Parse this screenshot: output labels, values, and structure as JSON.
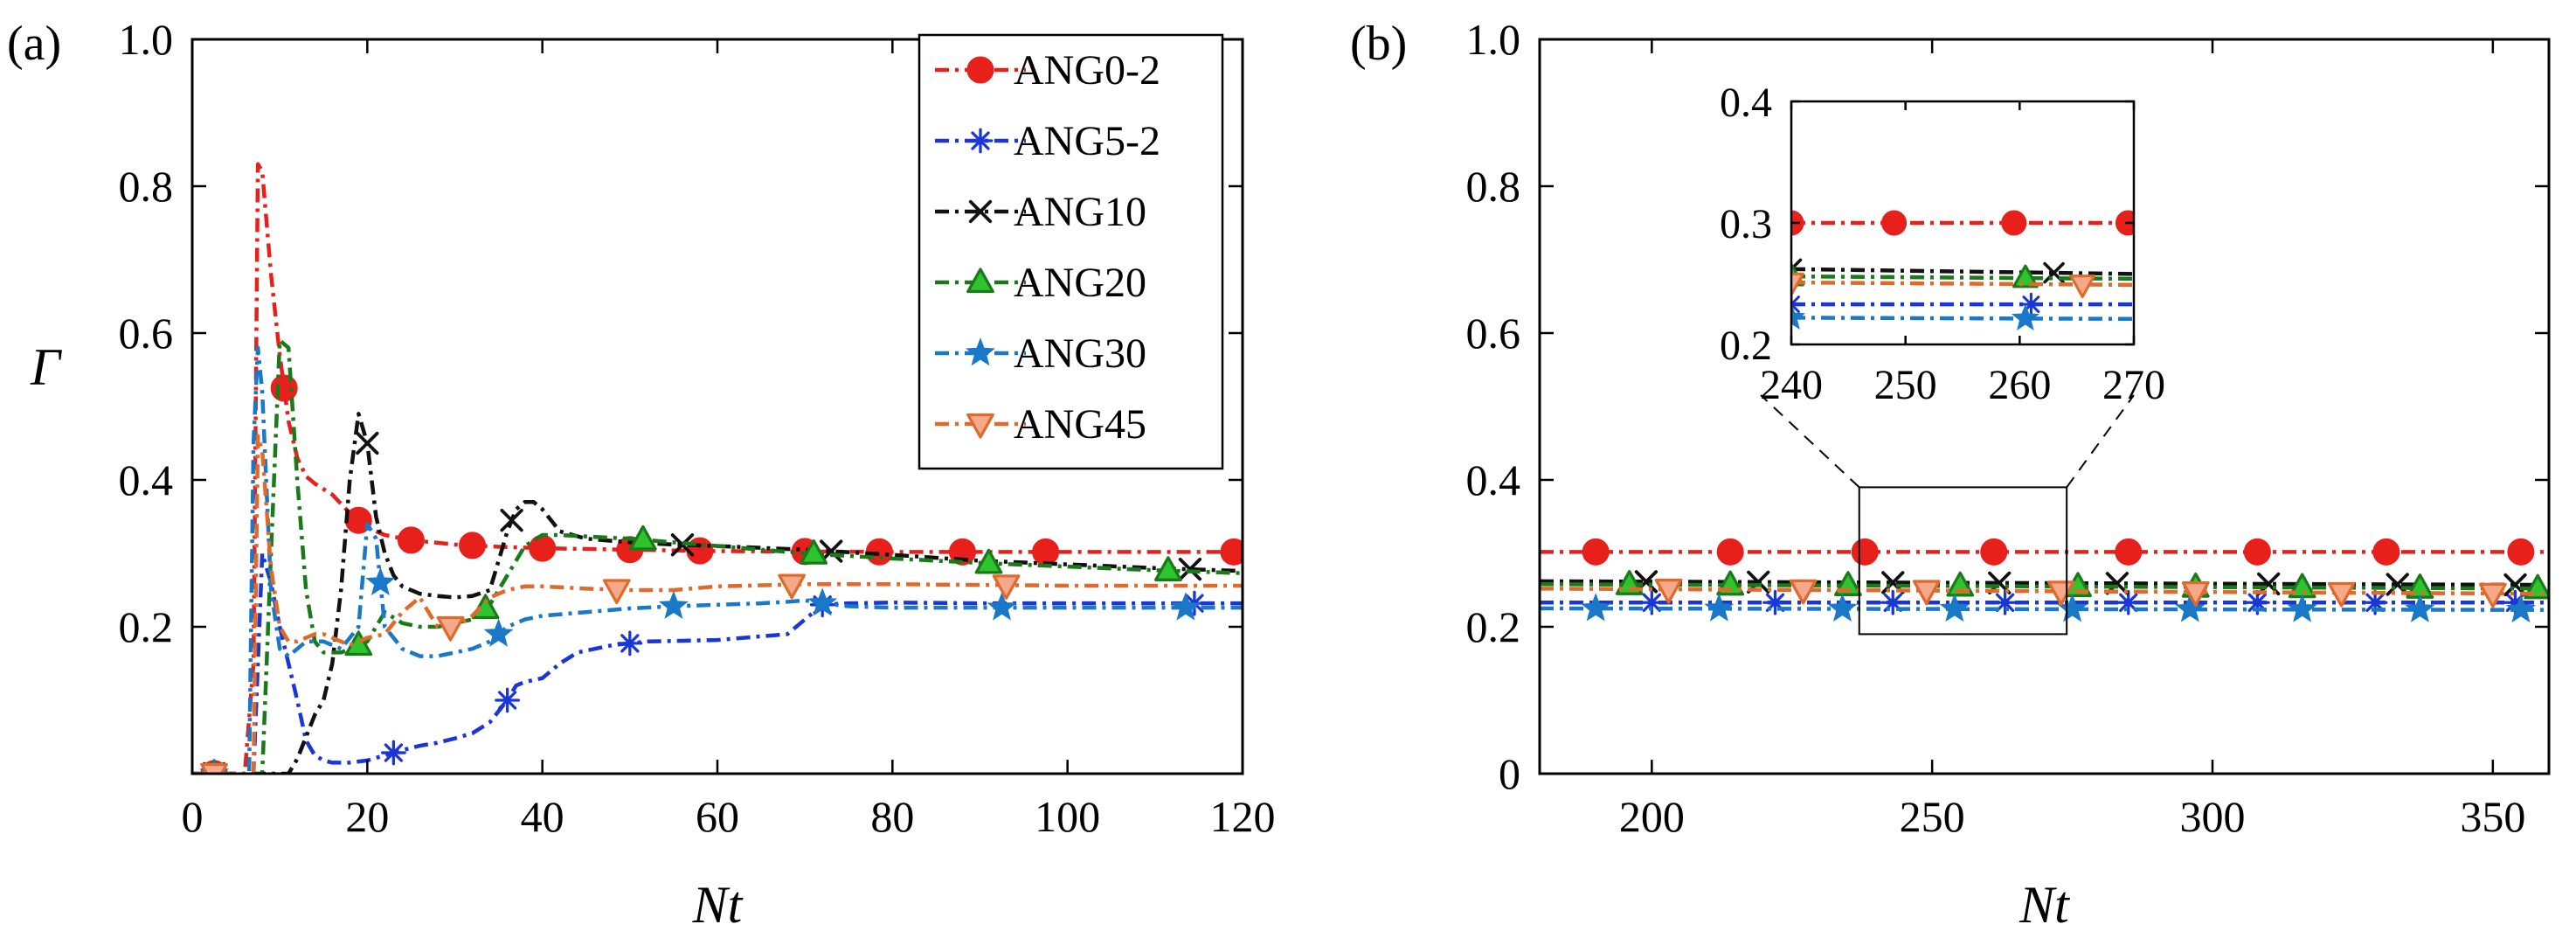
{
  "chart_data": [
    {
      "type": "line",
      "panel_label": "(a)",
      "xlabel": "Nt",
      "ylabel": "Γ",
      "xlim": [
        0,
        120
      ],
      "ylim": [
        0,
        1.0
      ],
      "xticks": [
        0,
        20,
        40,
        60,
        80,
        100,
        120
      ],
      "xtick_labels": [
        "0",
        "20",
        "40",
        "60",
        "80",
        "100",
        "120"
      ],
      "yticks": [
        0.2,
        0.4,
        0.6,
        0.8,
        1.0
      ],
      "ytick_labels": [
        "0.2",
        "0.4",
        "0.6",
        "0.8",
        "1.0"
      ],
      "legend": {
        "position": "top-right",
        "entries": [
          "ANG0-2",
          "ANG5-2",
          "ANG10",
          "ANG20",
          "ANG30",
          "ANG45"
        ]
      },
      "series": [
        {
          "name": "ANG0-2",
          "color": "#e8201c",
          "marker": "circle",
          "x": [
            0,
            6,
            7,
            7.5,
            8,
            9,
            10,
            11,
            12,
            13,
            14,
            16,
            18,
            19,
            20,
            22,
            25,
            30,
            35,
            40,
            50,
            60,
            80,
            100,
            120
          ],
          "y": [
            0,
            0,
            0.15,
            0.83,
            0.82,
            0.68,
            0.57,
            0.48,
            0.43,
            0.405,
            0.395,
            0.38,
            0.355,
            0.345,
            0.335,
            0.325,
            0.318,
            0.312,
            0.309,
            0.307,
            0.305,
            0.303,
            0.302,
            0.302,
            0.302
          ],
          "marker_x": [
            2.5,
            10.5,
            19,
            25,
            32,
            40,
            50,
            58,
            70,
            78.5,
            88,
            97.5,
            119
          ]
        },
        {
          "name": "ANG5-2",
          "color": "#1a36d8",
          "marker": "asterisk",
          "x": [
            0,
            7,
            8,
            9,
            10,
            12,
            13,
            14,
            15,
            16,
            18,
            20,
            22,
            24,
            26,
            28,
            30,
            32,
            34,
            36,
            37,
            38,
            40,
            42,
            44,
            48,
            52,
            60,
            68,
            70,
            72,
            75,
            80,
            90,
            100,
            110,
            120
          ],
          "y": [
            0,
            0,
            0.3,
            0.26,
            0.2,
            0.1,
            0.045,
            0.025,
            0.018,
            0.015,
            0.015,
            0.018,
            0.025,
            0.032,
            0.038,
            0.042,
            0.048,
            0.055,
            0.07,
            0.1,
            0.12,
            0.125,
            0.13,
            0.15,
            0.165,
            0.175,
            0.18,
            0.182,
            0.19,
            0.21,
            0.23,
            0.232,
            0.233,
            0.232,
            0.232,
            0.232,
            0.232
          ],
          "marker_x": [
            2.5,
            23,
            36,
            50,
            72,
            114.5
          ]
        },
        {
          "name": "ANG10",
          "color": "#111111",
          "marker": "cross",
          "x": [
            0,
            11,
            12,
            13,
            14,
            15,
            16,
            17,
            18,
            19,
            20,
            21,
            22,
            23,
            24,
            26,
            28,
            30,
            32,
            34,
            36,
            37,
            38,
            39,
            40,
            42,
            45,
            50,
            55,
            60,
            70,
            80,
            90,
            100,
            110,
            120
          ],
          "y": [
            0,
            0,
            0.02,
            0.05,
            0.08,
            0.1,
            0.15,
            0.25,
            0.4,
            0.49,
            0.45,
            0.35,
            0.3,
            0.27,
            0.255,
            0.245,
            0.242,
            0.24,
            0.242,
            0.25,
            0.33,
            0.36,
            0.37,
            0.37,
            0.36,
            0.33,
            0.32,
            0.315,
            0.312,
            0.31,
            0.305,
            0.298,
            0.29,
            0.285,
            0.28,
            0.276
          ],
          "marker_x": [
            2.5,
            20,
            36.5,
            56,
            73,
            114
          ]
        },
        {
          "name": "ANG20",
          "color": "#1a7a1a",
          "fill": "#2ec42e",
          "marker": "triangle-up",
          "x": [
            0,
            8,
            9,
            10,
            11,
            12,
            13,
            14,
            15,
            16,
            17,
            18,
            19,
            20,
            21,
            22,
            24,
            26,
            28,
            30,
            32,
            34,
            36,
            38,
            40,
            42,
            45,
            50,
            55,
            60,
            70,
            80,
            90,
            100,
            110,
            120
          ],
          "y": [
            0,
            0,
            0.3,
            0.59,
            0.58,
            0.4,
            0.25,
            0.18,
            0.165,
            0.165,
            0.165,
            0.17,
            0.175,
            0.18,
            0.2,
            0.22,
            0.205,
            0.2,
            0.2,
            0.205,
            0.21,
            0.23,
            0.27,
            0.31,
            0.325,
            0.325,
            0.323,
            0.32,
            0.315,
            0.31,
            0.3,
            0.293,
            0.287,
            0.282,
            0.277,
            0.273
          ],
          "marker_x": [
            2.5,
            19,
            33.5,
            51.5,
            71,
            91,
            111.5
          ]
        },
        {
          "name": "ANG30",
          "color": "#1a78c8",
          "marker": "star",
          "x": [
            0,
            6.5,
            7,
            7.5,
            8,
            9,
            10,
            11,
            12,
            13,
            15,
            17,
            19,
            20,
            21,
            22,
            24,
            26,
            28,
            30,
            32,
            34,
            36,
            38,
            40,
            45,
            50,
            55,
            60,
            65,
            68,
            70,
            72,
            75,
            80,
            90,
            100,
            110,
            120
          ],
          "y": [
            0,
            0,
            0.45,
            0.58,
            0.52,
            0.25,
            0.17,
            0.16,
            0.17,
            0.18,
            0.18,
            0.17,
            0.2,
            0.34,
            0.32,
            0.2,
            0.17,
            0.16,
            0.16,
            0.165,
            0.17,
            0.18,
            0.2,
            0.21,
            0.215,
            0.22,
            0.225,
            0.228,
            0.23,
            0.232,
            0.234,
            0.236,
            0.232,
            0.228,
            0.226,
            0.226,
            0.226,
            0.226,
            0.226
          ],
          "marker_x": [
            2.5,
            21.5,
            35,
            55,
            72,
            92.5,
            113.5
          ]
        },
        {
          "name": "ANG45",
          "color": "#e06a2c",
          "fill": "#f4a98a",
          "marker": "triangle-down",
          "x": [
            0,
            7,
            7.5,
            8,
            9,
            10,
            11,
            12,
            13,
            14,
            15,
            16,
            17,
            18,
            19,
            20,
            22,
            24,
            26,
            28,
            30,
            32,
            34,
            36,
            38,
            40,
            45,
            50,
            55,
            60,
            70,
            80,
            90,
            100,
            110,
            120
          ],
          "y": [
            0,
            0,
            0.46,
            0.44,
            0.28,
            0.2,
            0.18,
            0.18,
            0.185,
            0.19,
            0.19,
            0.185,
            0.18,
            0.175,
            0.18,
            0.185,
            0.19,
            0.22,
            0.24,
            0.2,
            0.2,
            0.215,
            0.24,
            0.25,
            0.255,
            0.255,
            0.252,
            0.25,
            0.25,
            0.255,
            0.258,
            0.258,
            0.257,
            0.256,
            0.256,
            0.256
          ],
          "marker_x": [
            2.5,
            29.5,
            48.5,
            68.5,
            93
          ]
        }
      ]
    },
    {
      "type": "line",
      "panel_label": "(b)",
      "xlabel": "Nt",
      "ylabel": "",
      "xlim": [
        180,
        360
      ],
      "ylim": [
        0,
        1.0
      ],
      "xticks": [
        200,
        250,
        300,
        350
      ],
      "xtick_labels": [
        "200",
        "250",
        "300",
        "350"
      ],
      "yticks": [
        0,
        0.2,
        0.4,
        0.6,
        0.8,
        1.0
      ],
      "ytick_labels": [
        "0",
        "0.2",
        "0.4",
        "0.6",
        "0.8",
        "1.0"
      ],
      "zoom_box": {
        "xlim": [
          237,
          274
        ],
        "ylim": [
          0.19,
          0.39
        ]
      },
      "series": [
        {
          "name": "ANG0-2",
          "color": "#e8201c",
          "marker": "circle",
          "x": [
            180,
            360
          ],
          "y": [
            0.302,
            0.302
          ],
          "marker_x": [
            190,
            214,
            238,
            261,
            285,
            308,
            331,
            355
          ]
        },
        {
          "name": "ANG5-2",
          "color": "#1a36d8",
          "marker": "asterisk",
          "x": [
            180,
            360
          ],
          "y": [
            0.233,
            0.233
          ],
          "marker_x": [
            200,
            222,
            243,
            263,
            285,
            308,
            329,
            354
          ]
        },
        {
          "name": "ANG10",
          "color": "#111111",
          "marker": "cross",
          "x": [
            180,
            360
          ],
          "y": [
            0.262,
            0.257
          ],
          "marker_x": [
            199,
            219,
            243,
            262,
            283,
            310,
            333,
            354
          ]
        },
        {
          "name": "ANG20",
          "color": "#1a7a1a",
          "fill": "#2ec42e",
          "marker": "triangle-up",
          "x": [
            180,
            360
          ],
          "y": [
            0.258,
            0.252
          ],
          "marker_x": [
            196,
            214,
            235,
            255,
            276,
            297,
            316,
            337,
            358
          ]
        },
        {
          "name": "ANG30",
          "color": "#1a78c8",
          "marker": "star",
          "x": [
            180,
            360
          ],
          "y": [
            0.225,
            0.223
          ],
          "marker_x": [
            190,
            212,
            234,
            254,
            275,
            296,
            316,
            337,
            355
          ]
        },
        {
          "name": "ANG45",
          "color": "#e06a2c",
          "fill": "#f4a98a",
          "marker": "triangle-down",
          "x": [
            180,
            360
          ],
          "y": [
            0.252,
            0.245
          ],
          "marker_x": [
            203,
            227,
            249,
            273,
            297,
            323,
            350
          ]
        }
      ]
    },
    {
      "type": "line",
      "panel_label": "(b) inset",
      "xlabel": "",
      "ylabel": "",
      "xlim": [
        240,
        270
      ],
      "ylim": [
        0.2,
        0.4
      ],
      "xticks": [
        240,
        250,
        260,
        270
      ],
      "xtick_labels": [
        "240",
        "250",
        "260",
        "270"
      ],
      "yticks": [
        0.2,
        0.3,
        0.4
      ],
      "ytick_labels": [
        "0.2",
        "0.3",
        "0.4"
      ],
      "series": [
        {
          "name": "ANG0-2",
          "color": "#e8201c",
          "marker": "circle",
          "x": [
            240,
            270
          ],
          "y": [
            0.3,
            0.3
          ],
          "marker_x": [
            240,
            249,
            259.5,
            269.5
          ]
        },
        {
          "name": "ANG5-2",
          "color": "#1a36d8",
          "marker": "asterisk",
          "x": [
            240,
            270
          ],
          "y": [
            0.233,
            0.233
          ],
          "marker_x": [
            240,
            261
          ]
        },
        {
          "name": "ANG10",
          "color": "#111111",
          "marker": "cross",
          "x": [
            240,
            270
          ],
          "y": [
            0.262,
            0.258
          ],
          "marker_x": [
            240,
            263
          ]
        },
        {
          "name": "ANG20",
          "color": "#1a7a1a",
          "fill": "#2ec42e",
          "marker": "triangle-up",
          "x": [
            240,
            270
          ],
          "y": [
            0.256,
            0.254
          ],
          "marker_x": [
            240,
            260.5
          ]
        },
        {
          "name": "ANG30",
          "color": "#1a78c8",
          "marker": "star",
          "x": [
            240,
            270
          ],
          "y": [
            0.222,
            0.221
          ],
          "marker_x": [
            240,
            260.5
          ]
        },
        {
          "name": "ANG45",
          "color": "#e06a2c",
          "fill": "#f4a98a",
          "marker": "triangle-down",
          "x": [
            240,
            270
          ],
          "y": [
            0.251,
            0.249
          ],
          "marker_x": [
            240,
            265.5
          ]
        }
      ]
    }
  ]
}
